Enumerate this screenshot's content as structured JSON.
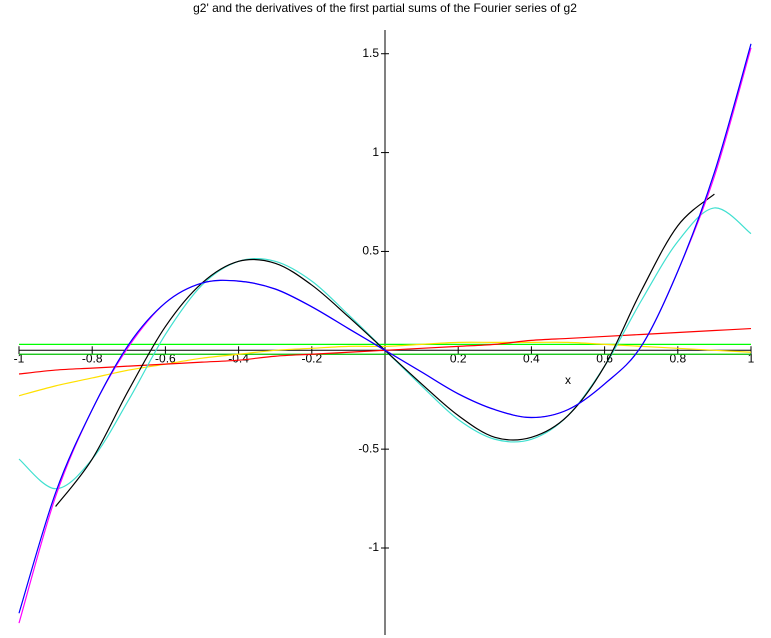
{
  "chart_data": {
    "type": "line",
    "title": "g2' and the derivatives of the first partial sums of the Fourier series of g2",
    "x_label": "x",
    "x": [
      -1,
      -0.9,
      -0.8,
      -0.7,
      -0.6,
      -0.5,
      -0.4,
      -0.3,
      -0.2,
      -0.1,
      0,
      0.1,
      0.2,
      0.3,
      0.4,
      0.5,
      0.6,
      0.7,
      0.8,
      0.9,
      1
    ],
    "series": [
      {
        "color": "#00ff00",
        "values": [
          0.03,
          0.03,
          0.03,
          0.03,
          0.03,
          0.03,
          0.03,
          0.03,
          0.03,
          0.03,
          0.03,
          0.03,
          0.03,
          0.03,
          0.03,
          0.03,
          0.03,
          0.03,
          0.03,
          0.03,
          0.03
        ]
      },
      {
        "color": "#00c000",
        "values": [
          -0.02,
          -0.02,
          -0.02,
          -0.02,
          -0.02,
          -0.02,
          -0.02,
          -0.02,
          -0.02,
          -0.02,
          -0.02,
          -0.02,
          -0.02,
          -0.02,
          -0.02,
          -0.02,
          -0.02,
          -0.02,
          -0.02,
          -0.02,
          -0.02
        ]
      },
      {
        "color": "#ffe000",
        "values": [
          -0.23,
          -0.18,
          -0.14,
          -0.1,
          -0.07,
          -0.04,
          -0.02,
          0,
          0.01,
          0.02,
          0.02,
          0.03,
          0.04,
          0.04,
          0.04,
          0.04,
          0.03,
          0.02,
          0.01,
          0,
          -0.01
        ]
      },
      {
        "color": "#ff0000",
        "values": [
          -0.12,
          -0.1,
          -0.09,
          -0.08,
          -0.07,
          -0.06,
          -0.05,
          -0.03,
          -0.02,
          -0.01,
          0,
          0.01,
          0.02,
          0.03,
          0.05,
          0.06,
          0.07,
          0.08,
          0.09,
          0.1,
          0.11
        ]
      },
      {
        "color": "#40e0d0",
        "values": [
          -0.55,
          -0.7,
          -0.55,
          -0.25,
          0.08,
          0.33,
          0.45,
          0.45,
          0.35,
          0.18,
          0,
          -0.18,
          -0.35,
          -0.45,
          -0.45,
          -0.33,
          -0.08,
          0.25,
          0.55,
          0.72,
          0.59
        ]
      },
      {
        "color": "#000000",
        "values": [
          null,
          -0.79,
          -0.55,
          -0.2,
          0.12,
          0.34,
          0.45,
          0.44,
          0.33,
          0.17,
          0,
          -0.17,
          -0.33,
          -0.44,
          -0.44,
          -0.33,
          -0.08,
          0.3,
          0.63,
          0.79,
          null
        ]
      },
      {
        "color": "#ff00ff",
        "values": [
          -1.38,
          -0.74,
          -0.3,
          0.02,
          0.24,
          0.34,
          0.35,
          0.31,
          0.22,
          0.11,
          0,
          -0.11,
          -0.22,
          -0.3,
          -0.34,
          -0.3,
          -0.17,
          0.02,
          0.4,
          0.88,
          1.53
        ]
      },
      {
        "color": "#0000ff",
        "values": [
          -1.33,
          -0.72,
          -0.3,
          0.03,
          0.24,
          0.34,
          0.35,
          0.31,
          0.22,
          0.11,
          0,
          -0.11,
          -0.22,
          -0.3,
          -0.34,
          -0.3,
          -0.17,
          0.02,
          0.4,
          0.9,
          1.55
        ]
      }
    ],
    "xlim": [
      -1,
      1
    ],
    "xticks": [
      -1,
      -0.8,
      -0.6,
      -0.4,
      -0.2,
      0.2,
      0.4,
      0.6,
      0.8,
      1
    ],
    "ylim": [
      -1.44,
      1.62
    ],
    "yticks": [
      -1,
      -0.5,
      0.5,
      1,
      1.5
    ]
  }
}
